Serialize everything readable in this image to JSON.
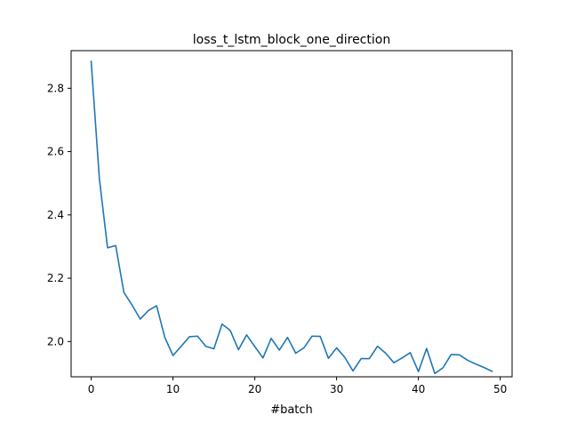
{
  "chart_data": {
    "type": "line",
    "title": "loss_t_lstm_block_one_direction",
    "xlabel": "#batch",
    "ylabel": "",
    "xlim": [
      -2.45,
      51.45
    ],
    "ylim": [
      1.8886,
      2.9188
    ],
    "xticks": [
      0,
      10,
      20,
      30,
      40,
      50
    ],
    "xtick_labels": [
      "0",
      "10",
      "20",
      "30",
      "40",
      "50"
    ],
    "yticks": [
      2.0,
      2.2,
      2.4,
      2.6,
      2.8
    ],
    "ytick_labels": [
      "2.0",
      "2.2",
      "2.4",
      "2.6",
      "2.8"
    ],
    "grid": false,
    "legend": "none",
    "series": [
      {
        "color": "#1f77b4",
        "x": [
          0,
          1,
          2,
          3,
          4,
          5,
          6,
          7,
          8,
          9,
          10,
          11,
          12,
          13,
          14,
          15,
          16,
          17,
          18,
          19,
          20,
          21,
          22,
          23,
          24,
          25,
          26,
          27,
          28,
          29,
          30,
          31,
          32,
          33,
          34,
          35,
          36,
          37,
          38,
          39,
          40,
          41,
          42,
          43,
          44,
          45,
          46,
          47,
          48,
          49
        ],
        "values": [
          2.885,
          2.515,
          2.296,
          2.303,
          2.155,
          2.115,
          2.071,
          2.098,
          2.113,
          2.013,
          1.956,
          1.985,
          2.015,
          2.017,
          1.985,
          1.977,
          2.055,
          2.035,
          1.974,
          2.021,
          1.984,
          1.948,
          2.01,
          1.973,
          2.013,
          1.963,
          1.98,
          2.017,
          2.016,
          1.947,
          1.98,
          1.95,
          1.907,
          1.946,
          1.946,
          1.985,
          1.963,
          1.933,
          1.948,
          1.965,
          1.905,
          1.978,
          1.899,
          1.917,
          1.959,
          1.958,
          1.941,
          1.929,
          1.918,
          1.906
        ]
      }
    ]
  }
}
